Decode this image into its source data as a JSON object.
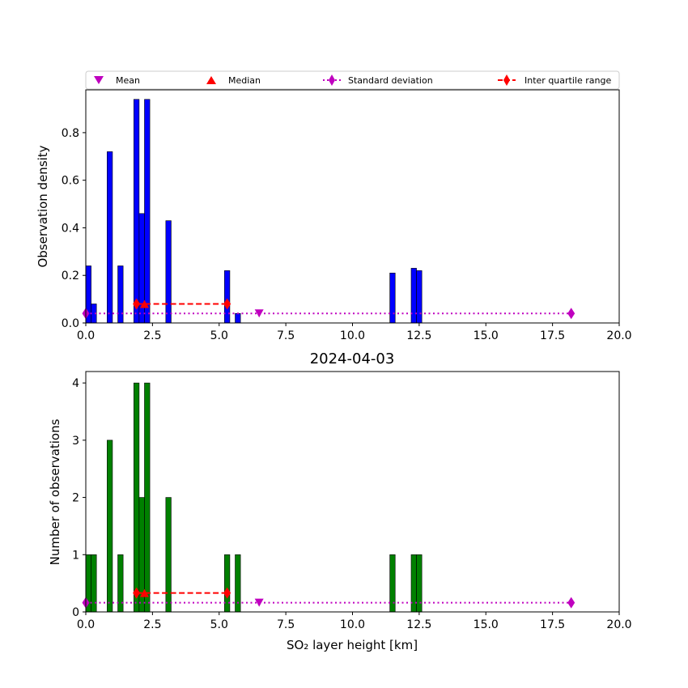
{
  "legend": {
    "mean": "Mean",
    "median": "Median",
    "std": "Standard deviation",
    "iqr": "Inter quartile range"
  },
  "colors": {
    "density_bars": "#0000ff",
    "count_bars": "#008000",
    "mean": "#bf00bf",
    "median": "#ff0000",
    "std": "#bf00bf",
    "iqr": "#ff0000"
  },
  "chart_data": [
    {
      "type": "bar",
      "ylabel": "Observation density",
      "xlim": [
        0,
        20
      ],
      "ylim": [
        0,
        0.98
      ],
      "xticks": [
        "0.0",
        "2.5",
        "5.0",
        "7.5",
        "10.0",
        "12.5",
        "15.0",
        "17.5",
        "20.0"
      ],
      "yticks": [
        "0.0",
        "0.2",
        "0.4",
        "0.6",
        "0.8"
      ],
      "bin_width": 0.2,
      "bins": [
        0.0,
        0.2,
        0.8,
        1.2,
        1.8,
        2.0,
        2.2,
        3.0,
        5.2,
        5.6,
        11.4,
        12.2,
        12.4
      ],
      "values": [
        0.24,
        0.08,
        0.72,
        0.24,
        0.94,
        0.46,
        0.94,
        0.43,
        0.22,
        0.04,
        0.21,
        0.23,
        0.22
      ],
      "stats": {
        "mean": {
          "x": 6.5,
          "y": 0.04
        },
        "median": {
          "x": 2.2,
          "y": 0.08
        },
        "std": {
          "x": [
            0.0,
            18.2
          ],
          "y": 0.04
        },
        "iqr": {
          "x": [
            1.9,
            5.3
          ],
          "y": 0.08
        }
      },
      "legend_position": "top"
    },
    {
      "type": "bar",
      "title": "2024-04-03",
      "xlabel": "SO₂ layer height [km]",
      "ylabel": "Number of observations",
      "xlim": [
        0,
        20
      ],
      "ylim": [
        0,
        4.2
      ],
      "xticks": [
        "0.0",
        "2.5",
        "5.0",
        "7.5",
        "10.0",
        "12.5",
        "15.0",
        "17.5",
        "20.0"
      ],
      "yticks": [
        "0",
        "1",
        "2",
        "3",
        "4"
      ],
      "bin_width": 0.2,
      "bins": [
        0.0,
        0.2,
        0.8,
        1.2,
        1.8,
        2.0,
        2.2,
        3.0,
        5.2,
        5.6,
        11.4,
        12.2,
        12.4
      ],
      "values": [
        1,
        1,
        3,
        1,
        4,
        2,
        4,
        2,
        1,
        1,
        1,
        1,
        1
      ],
      "stats": {
        "mean": {
          "x": 6.5,
          "y": 0.16
        },
        "median": {
          "x": 2.2,
          "y": 0.33
        },
        "std": {
          "x": [
            0.0,
            18.2
          ],
          "y": 0.16
        },
        "iqr": {
          "x": [
            1.9,
            5.3
          ],
          "y": 0.33
        }
      }
    }
  ]
}
